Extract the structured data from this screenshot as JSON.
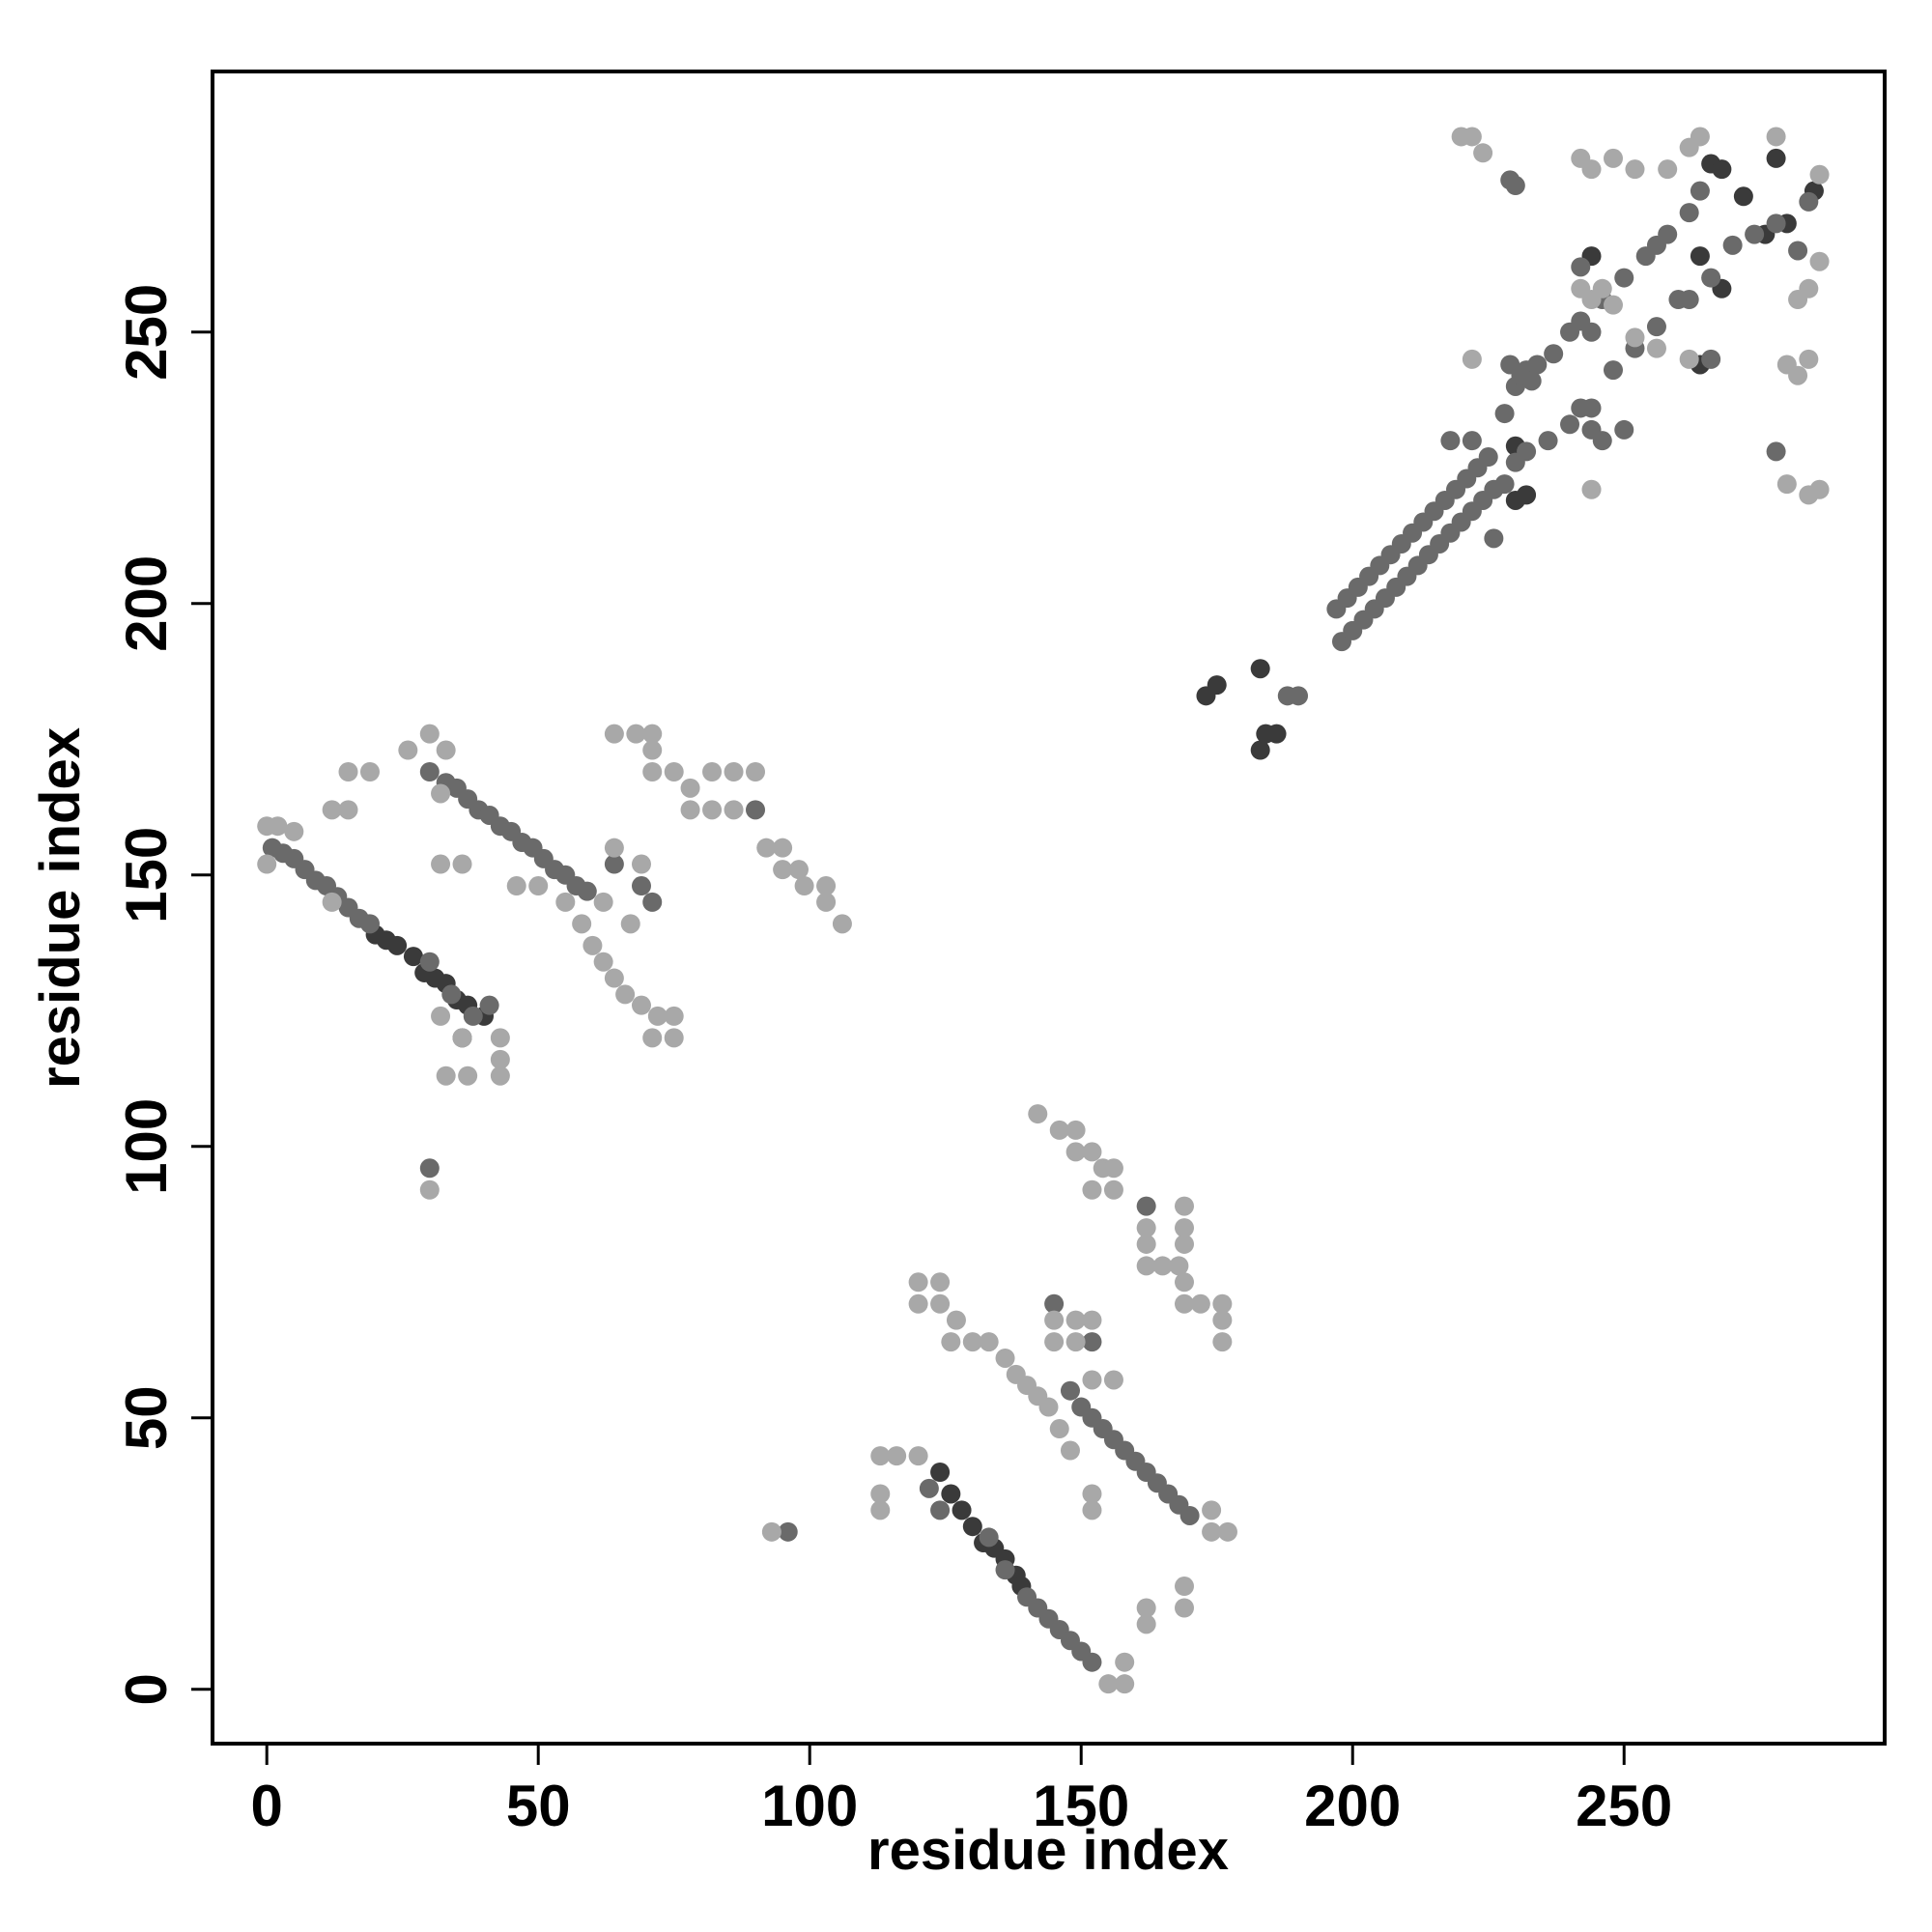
{
  "chart_data": {
    "type": "scatter",
    "x_label": "residue index",
    "y_label": "residue index",
    "xlim": [
      -10,
      298
    ],
    "ylim": [
      -10,
      298
    ],
    "xticks": [
      0,
      50,
      100,
      150,
      200,
      250
    ],
    "yticks": [
      0,
      50,
      100,
      150,
      200,
      250
    ],
    "grid": false,
    "series": [
      {
        "color": "#3a3a3a",
        "x": [
          20,
          22,
          24,
          27,
          29,
          31,
          33,
          35,
          37,
          40,
          124,
          126,
          128,
          130,
          132,
          134,
          136,
          138,
          139,
          173,
          175,
          183,
          184,
          183,
          186,
          230,
          230,
          232,
          244,
          264,
          266,
          268,
          272,
          276,
          278,
          280,
          285,
          264,
          268
        ],
        "values": [
          139,
          138,
          137,
          135,
          132,
          131,
          130,
          127,
          126,
          124,
          40,
          36,
          33,
          30,
          27,
          26,
          24,
          21,
          19,
          183,
          185,
          173,
          176,
          188,
          176,
          229,
          219,
          220,
          264,
          244,
          281,
          280,
          275,
          268,
          282,
          270,
          276,
          264,
          258
        ]
      },
      {
        "color": "#6a6a6a",
        "x": [
          1,
          3,
          5,
          7,
          9,
          11,
          13,
          15,
          17,
          19,
          30,
          30,
          34,
          36,
          38,
          41,
          30,
          33,
          35,
          37,
          39,
          41,
          43,
          45,
          47,
          49,
          51,
          53,
          55,
          57,
          59,
          64,
          69,
          71,
          90,
          96,
          122,
          124,
          140,
          142,
          144,
          146,
          148,
          150,
          152,
          133,
          136,
          145,
          152,
          148,
          150,
          152,
          154,
          156,
          158,
          160,
          162,
          164,
          166,
          168,
          170,
          162,
          188,
          190,
          197,
          199,
          201,
          203,
          205,
          207,
          209,
          211,
          213,
          215,
          217,
          219,
          221,
          223,
          225,
          228,
          230,
          232,
          234,
          237,
          240,
          242,
          246,
          250,
          254,
          256,
          258,
          262,
          264,
          198,
          200,
          202,
          204,
          206,
          208,
          210,
          212,
          214,
          216,
          218,
          220,
          222,
          224,
          226,
          230,
          232,
          236,
          240,
          244,
          248,
          252,
          256,
          260,
          262,
          266,
          270,
          274,
          278,
          282,
          284,
          278,
          229,
          266,
          229,
          231,
          233,
          242,
          244,
          246,
          222,
          226,
          228,
          218,
          230,
          250,
          242,
          244
        ],
        "values": [
          155,
          154,
          153,
          151,
          149,
          148,
          146,
          144,
          142,
          141,
          96,
          134,
          128,
          120,
          124,
          126,
          169,
          167,
          166,
          164,
          162,
          161,
          159,
          158,
          156,
          155,
          153,
          151,
          150,
          148,
          147,
          152,
          148,
          145,
          162,
          29,
          37,
          33,
          17,
          15,
          13,
          11,
          9,
          7,
          5,
          28,
          22,
          71,
          64,
          55,
          52,
          50,
          48,
          46,
          44,
          42,
          40,
          38,
          36,
          34,
          32,
          89,
          183,
          183,
          199,
          201,
          203,
          205,
          207,
          209,
          211,
          213,
          215,
          217,
          219,
          221,
          223,
          225,
          227,
          235,
          240,
          243,
          244,
          246,
          250,
          252,
          256,
          260,
          264,
          266,
          268,
          272,
          276,
          193,
          195,
          197,
          199,
          201,
          203,
          205,
          207,
          209,
          211,
          213,
          215,
          217,
          219,
          221,
          226,
          228,
          230,
          233,
          236,
          243,
          247,
          251,
          256,
          256,
          260,
          266,
          268,
          270,
          265,
          274,
          228,
          278,
          245,
          244,
          242,
          241,
          236,
          232,
          230,
          230,
          212,
          222,
          230,
          277,
          232,
          262,
          250
        ]
      },
      {
        "color": "#a8a8a8",
        "x": [
          0,
          2,
          5,
          0,
          12,
          15,
          19,
          12,
          15,
          26,
          30,
          33,
          32,
          30,
          33,
          37,
          43,
          43,
          43,
          32,
          36,
          32,
          36,
          64,
          68,
          71,
          71,
          71,
          75,
          78,
          78,
          82,
          86,
          82,
          86,
          90,
          92,
          95,
          95,
          98,
          99,
          103,
          103,
          106,
          46,
          50,
          55,
          58,
          60,
          62,
          64,
          66,
          69,
          72,
          75,
          75,
          71,
          64,
          62,
          67,
          69,
          93,
          113,
          116,
          113,
          113,
          120,
          120,
          124,
          124,
          120,
          127,
          126,
          130,
          133,
          136,
          138,
          140,
          142,
          144,
          146,
          148,
          142,
          146,
          149,
          149,
          152,
          154,
          152,
          156,
          156,
          162,
          162,
          162,
          165,
          168,
          169,
          169,
          169,
          169,
          169,
          172,
          176,
          176,
          176,
          145,
          149,
          145,
          149,
          152,
          152,
          156,
          152,
          152,
          162,
          162,
          169,
          169,
          174,
          174,
          177,
          158,
          158,
          155,
          220,
          222,
          224,
          242,
          244,
          248,
          252,
          258,
          262,
          264,
          242,
          244,
          246,
          248,
          252,
          256,
          262,
          280,
          282,
          284,
          282,
          284,
          286,
          280,
          284,
          286,
          244,
          222,
          278,
          286
        ],
        "values": [
          159,
          159,
          158,
          152,
          145,
          169,
          169,
          162,
          162,
          173,
          176,
          173,
          165,
          92,
          113,
          113,
          113,
          116,
          120,
          152,
          152,
          124,
          120,
          176,
          176,
          176,
          173,
          169,
          169,
          166,
          162,
          169,
          169,
          162,
          162,
          169,
          155,
          155,
          151,
          151,
          148,
          148,
          145,
          141,
          148,
          148,
          145,
          141,
          137,
          134,
          131,
          128,
          126,
          124,
          124,
          120,
          120,
          155,
          145,
          141,
          152,
          29,
          43,
          43,
          36,
          33,
          43,
          75,
          75,
          71,
          71,
          68,
          64,
          64,
          64,
          61,
          58,
          56,
          54,
          52,
          48,
          44,
          106,
          103,
          103,
          99,
          99,
          96,
          92,
          92,
          96,
          85,
          82,
          78,
          78,
          78,
          89,
          85,
          82,
          75,
          71,
          71,
          71,
          68,
          64,
          68,
          68,
          64,
          64,
          68,
          57,
          57,
          36,
          33,
          15,
          12,
          19,
          15,
          33,
          29,
          29,
          5,
          1,
          1,
          286,
          286,
          283,
          282,
          280,
          282,
          280,
          280,
          284,
          286,
          258,
          256,
          258,
          255,
          249,
          247,
          245,
          244,
          242,
          245,
          256,
          258,
          263,
          222,
          220,
          221,
          221,
          245,
          286,
          279
        ]
      }
    ]
  }
}
